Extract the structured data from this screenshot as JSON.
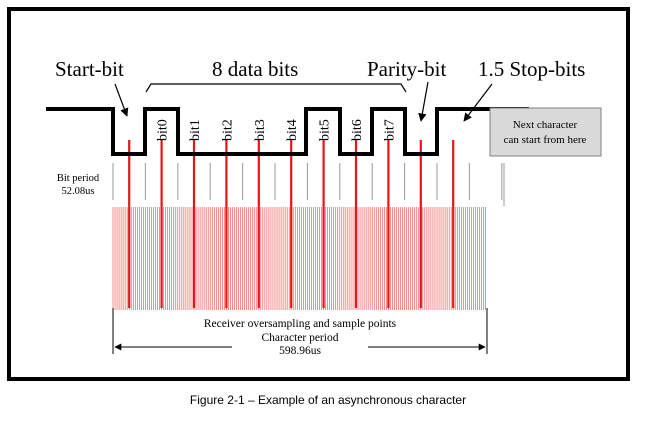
{
  "labels": {
    "start_bit": "Start-bit",
    "data_bits": "8 data bits",
    "parity_bit": "Parity-bit",
    "stop_bits": "1.5 Stop-bits",
    "next_char_line1": "Next character",
    "next_char_line2": "can start from here",
    "bit_period_line1": "Bit period",
    "bit_period_line2": "52.08us",
    "oversampling": "Receiver oversampling and sample points",
    "char_period": "Character period",
    "char_period_value": "598.96us"
  },
  "bit_labels": [
    "bit0",
    "bit1",
    "bit2",
    "bit3",
    "bit4",
    "bit5",
    "bit6",
    "bit7"
  ],
  "waveform": {
    "levels": [
      "idle-high",
      "0",
      "1",
      "0",
      "0",
      "0",
      "0",
      "1",
      "0",
      "1",
      "0",
      "1",
      "1"
    ],
    "legend_sequence": "start=0, data=1 0 0 0 0 1 0 1, parity=0, stop=1.5 bits high"
  },
  "caption": "Figure 2-1 – Example of an asynchronous character",
  "colors": {
    "signal": "#000000",
    "sample": "#e8141b",
    "oversample": "#f04040",
    "tick": "#999999",
    "box_fill": "#d9d9d9",
    "box_stroke": "#808080",
    "frame": "#000000"
  }
}
